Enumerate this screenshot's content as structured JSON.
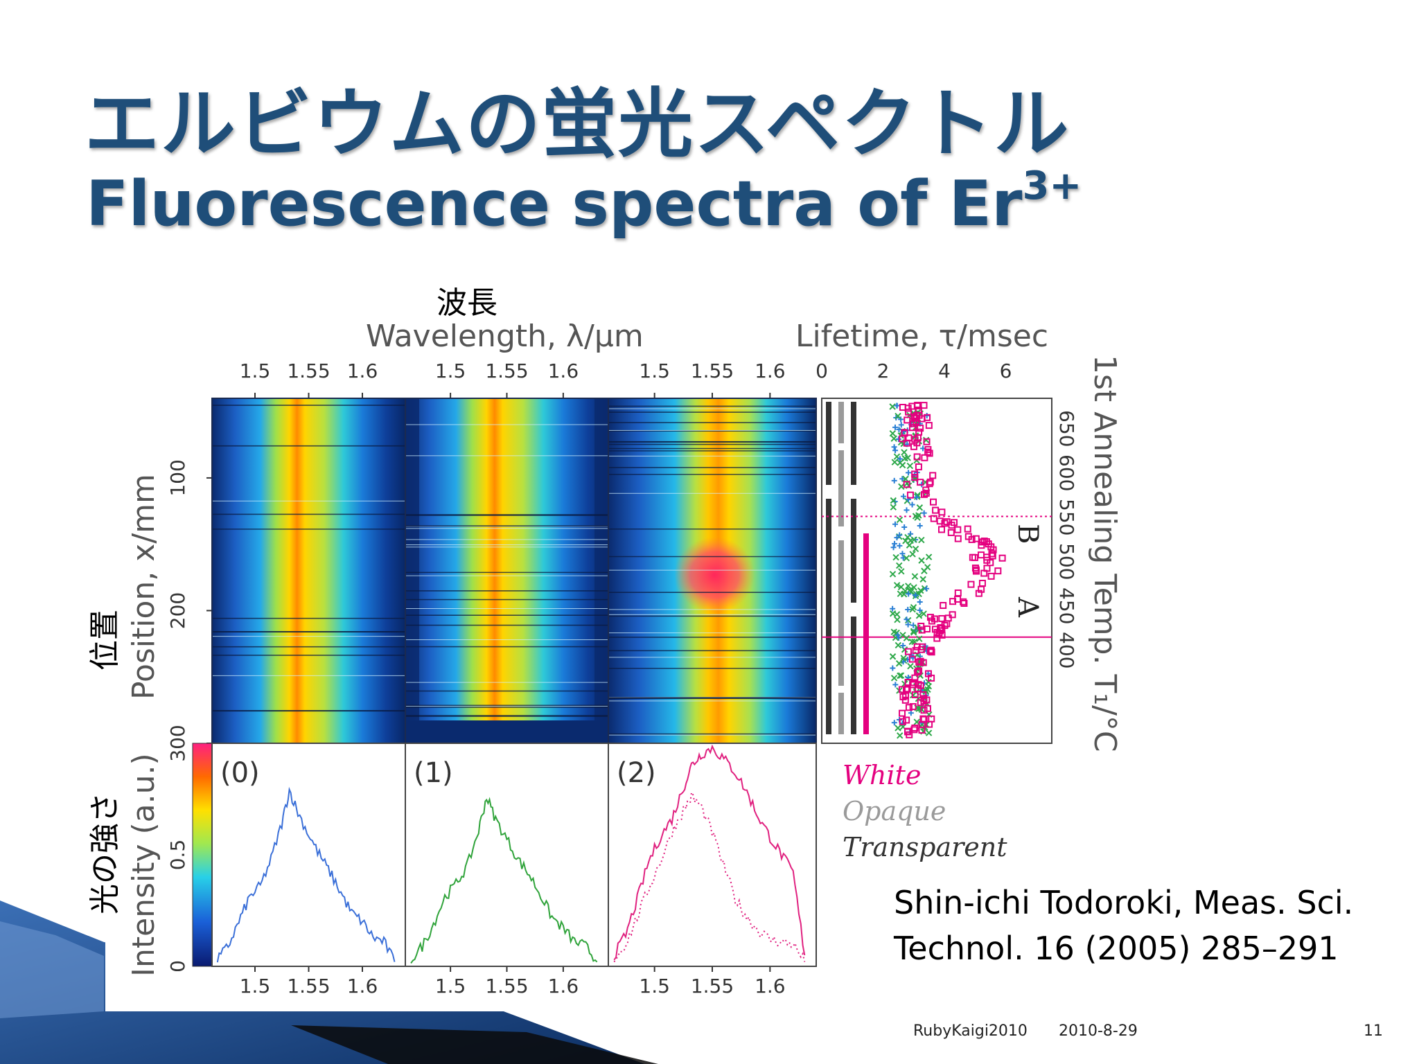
{
  "slide": {
    "title_jp": "エルビウムの蛍光スペクトル",
    "title_en": "Fluorescence spectra of Er",
    "title_en_sup": "3+",
    "citation_line1": "Shin-ichi Todoroki, Meas. Sci.",
    "citation_line2": "Technol. 16 (2005) 285–291",
    "footer_event": "RubyKaigi2010",
    "footer_date": "2010-8-29",
    "page_number": "11"
  },
  "colors": {
    "title": "#1f4e79",
    "white_series": "#e4007f",
    "opaque_series": "#9a9a9a",
    "transparent_series": "#333333",
    "spectrum_0": "#3a6fd8",
    "spectrum_1": "#2fa33a",
    "spectrum_2": "#e0207f",
    "crosses_blue": "#2a7fd4",
    "crosses_green": "#2ea84a"
  },
  "chart_data": {
    "type": "heatmap",
    "jp_wavelength": "波長",
    "jp_position": "位置",
    "jp_intensity": "光の強さ",
    "xlabel_top": "Wavelength, λ/μm",
    "xlabel_lifetime": "Lifetime, τ/msec",
    "ylabel_left": "Position, x/mm",
    "ylabel_bottom": "Intensity (a.u.)",
    "ylabel_right": "1st Annealing Temp. T₁/°C",
    "wavelength_ticks": [
      "1.5",
      "1.55",
      "1.6"
    ],
    "wavelength_range": [
      1.46,
      1.64
    ],
    "lifetime_ticks": [
      "0",
      "2",
      "4",
      "6"
    ],
    "lifetime_range": [
      0,
      7.5
    ],
    "position_ticks": [
      "100",
      "200",
      "300"
    ],
    "position_range": [
      40,
      300
    ],
    "temp_ticks": [
      "650",
      "600",
      "550",
      "500",
      "450",
      "400"
    ],
    "intensity_ticks": [
      "0",
      "0.5"
    ],
    "intensity_range": [
      0,
      1
    ],
    "colorbar_range": [
      0,
      1
    ],
    "panels": [
      {
        "label": "(0)",
        "peak_um": 1.532
      },
      {
        "label": "(1)",
        "peak_um": 1.532
      },
      {
        "label": "(2)",
        "peak_um": 1.545
      }
    ],
    "region_labels": [
      "B",
      "A"
    ],
    "boundary_positions_mm": [
      129,
      220
    ],
    "legend": [
      "White",
      "Opaque",
      "Transparent"
    ],
    "spectra": {
      "x": [
        1.465,
        1.475,
        1.485,
        1.495,
        1.505,
        1.515,
        1.525,
        1.532,
        1.54,
        1.55,
        1.56,
        1.57,
        1.58,
        1.59,
        1.6,
        1.61,
        1.62,
        1.63
      ],
      "series": [
        {
          "values": [
            0.03,
            0.09,
            0.2,
            0.31,
            0.36,
            0.48,
            0.64,
            0.79,
            0.69,
            0.59,
            0.5,
            0.42,
            0.33,
            0.24,
            0.2,
            0.13,
            0.11,
            0.02
          ]
        },
        {
          "values": [
            0.03,
            0.09,
            0.19,
            0.31,
            0.37,
            0.45,
            0.61,
            0.76,
            0.66,
            0.57,
            0.48,
            0.41,
            0.32,
            0.22,
            0.17,
            0.11,
            0.09,
            0.02
          ]
        },
        {
          "values": [
            0.05,
            0.14,
            0.3,
            0.47,
            0.58,
            0.66,
            0.8,
            0.9,
            0.95,
            0.98,
            0.93,
            0.87,
            0.78,
            0.67,
            0.58,
            0.5,
            0.42,
            0.05
          ]
        },
        {
          "values": [
            0.03,
            0.1,
            0.22,
            0.35,
            0.47,
            0.6,
            0.7,
            0.76,
            0.72,
            0.6,
            0.45,
            0.3,
            0.22,
            0.16,
            0.12,
            0.11,
            0.1,
            0.02
          ]
        }
      ]
    }
  }
}
